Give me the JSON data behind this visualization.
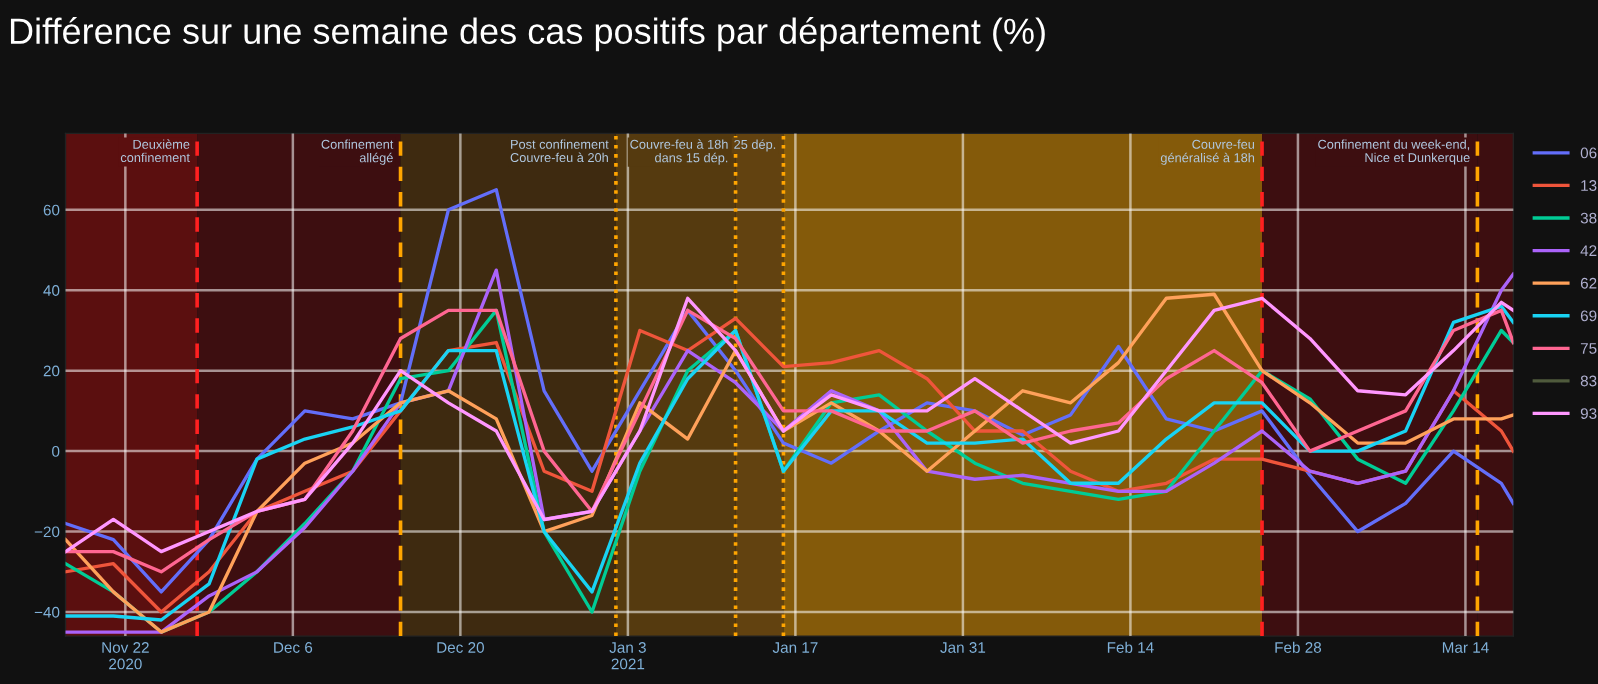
{
  "chart_data": {
    "type": "line",
    "title": "Différence sur une semaine des cas positifs par département (%)",
    "x": [
      "2020-11-17",
      "2020-11-21",
      "2020-11-25",
      "2020-11-29",
      "2020-12-03",
      "2020-12-07",
      "2020-12-11",
      "2020-12-15",
      "2020-12-19",
      "2020-12-23",
      "2020-12-27",
      "2020-12-31",
      "2021-01-04",
      "2021-01-08",
      "2021-01-12",
      "2021-01-16",
      "2021-01-20",
      "2021-01-24",
      "2021-01-28",
      "2021-02-01",
      "2021-02-05",
      "2021-02-09",
      "2021-02-13",
      "2021-02-17",
      "2021-02-21",
      "2021-02-25",
      "2021-03-01",
      "2021-03-05",
      "2021-03-09",
      "2021-03-13",
      "2021-03-17",
      "2021-03-18"
    ],
    "series": [
      {
        "name": "06",
        "color": "#636efa",
        "values": [
          -18,
          -22,
          -35,
          -22,
          -2,
          10,
          8,
          12,
          60,
          65,
          15,
          -5,
          15,
          35,
          20,
          2,
          -3,
          5,
          12,
          10,
          4,
          9,
          26,
          8,
          5,
          10,
          -6,
          -20,
          -13,
          0,
          -8,
          -13
        ]
      },
      {
        "name": "13",
        "color": "#ef553b",
        "values": [
          -30,
          -28,
          -40,
          -30,
          -15,
          -10,
          -5,
          10,
          25,
          27,
          -5,
          -10,
          30,
          25,
          33,
          21,
          22,
          25,
          18,
          5,
          5,
          -5,
          -10,
          -8,
          -2,
          -2,
          -5,
          -8,
          -5,
          15,
          5,
          0
        ]
      },
      {
        "name": "38",
        "color": "#00cc96",
        "values": [
          -28,
          -35,
          -45,
          -40,
          -30,
          -18,
          -5,
          18,
          20,
          35,
          -20,
          -40,
          -5,
          20,
          30,
          -5,
          12,
          14,
          5,
          -3,
          -8,
          -10,
          -12,
          -10,
          5,
          20,
          13,
          -2,
          -8,
          10,
          30,
          27
        ]
      },
      {
        "name": "42",
        "color": "#ab63fa",
        "values": [
          -45,
          -45,
          -45,
          -36,
          -30,
          -19,
          -5,
          12,
          15,
          45,
          -17,
          -15,
          5,
          25,
          17,
          5,
          15,
          10,
          -5,
          -7,
          -6,
          -8,
          -10,
          -10,
          -3,
          5,
          -5,
          -8,
          -5,
          15,
          40,
          44
        ]
      },
      {
        "name": "62",
        "color": "#ffa15a",
        "values": [
          -22,
          -35,
          -45,
          -40,
          -15,
          -3,
          2,
          12,
          15,
          8,
          -20,
          -16,
          12,
          3,
          25,
          5,
          12,
          5,
          -5,
          5,
          15,
          12,
          22,
          38,
          39,
          20,
          12,
          2,
          2,
          8,
          8,
          9
        ]
      },
      {
        "name": "69",
        "color": "#19d3f3",
        "values": [
          -41,
          -41,
          -42,
          -33,
          -2,
          3,
          6,
          10,
          25,
          25,
          -20,
          -35,
          -3,
          18,
          30,
          -5,
          10,
          10,
          2,
          2,
          3,
          -8,
          -8,
          3,
          12,
          12,
          0,
          0,
          5,
          32,
          36,
          32
        ]
      },
      {
        "name": "75",
        "color": "#ff6692",
        "values": [
          -25,
          -25,
          -30,
          -22,
          -15,
          -12,
          5,
          28,
          35,
          35,
          0,
          -15,
          10,
          35,
          28,
          10,
          10,
          5,
          5,
          10,
          2,
          5,
          7,
          18,
          25,
          17,
          0,
          5,
          10,
          30,
          35,
          27
        ]
      },
      {
        "name": "83",
        "color": "#4f5a3c",
        "values": [
          null,
          null,
          null,
          null,
          null,
          null,
          null,
          null,
          null,
          null,
          null,
          null,
          null,
          null,
          null,
          null,
          null,
          null,
          null,
          null,
          null,
          null,
          null,
          null,
          null,
          null,
          null,
          null,
          null,
          null,
          null,
          null
        ]
      },
      {
        "name": "93",
        "color": "#ff97ff",
        "values": [
          -25,
          -17,
          -25,
          -20,
          -15,
          -12,
          2,
          20,
          12,
          5,
          -17,
          -15,
          5,
          38,
          25,
          5,
          14,
          10,
          10,
          18,
          10,
          2,
          5,
          20,
          35,
          38,
          28,
          15,
          14,
          25,
          37,
          35
        ]
      }
    ],
    "xlim": [
      "2020-11-17",
      "2021-03-18"
    ],
    "xticks": [
      {
        "value": "2020-11-22",
        "label": "Nov 22\n2020"
      },
      {
        "value": "2020-12-06",
        "label": "Dec 6"
      },
      {
        "value": "2020-12-20",
        "label": "Dec 20"
      },
      {
        "value": "2021-01-03",
        "label": "Jan 3\n2021"
      },
      {
        "value": "2021-01-17",
        "label": "Jan 17"
      },
      {
        "value": "2021-01-31",
        "label": "Jan 31"
      },
      {
        "value": "2021-02-14",
        "label": "Feb 14"
      },
      {
        "value": "2021-02-28",
        "label": "Feb 28"
      },
      {
        "value": "2021-03-14",
        "label": "Mar 14"
      }
    ],
    "ylim": [
      -46,
      79
    ],
    "yticks": [
      {
        "value": -40,
        "label": "−40"
      },
      {
        "value": -20,
        "label": "−20"
      },
      0,
      20,
      40,
      60
    ],
    "bands": [
      {
        "axis": "x",
        "from": "2020-11-17",
        "to": "2020-11-28",
        "color": "#5b0f0f",
        "label": "Deuxième\nconfinement"
      },
      {
        "axis": "x",
        "from": "2020-11-28",
        "to": "2020-12-15",
        "color": "#3d0e10",
        "label": "Confinement\nallégé"
      },
      {
        "axis": "x",
        "from": "2020-12-15",
        "to": "2021-01-02",
        "color": "#3e2a10",
        "label": "Post confinement\nCouvre-feu à 20h"
      },
      {
        "axis": "x",
        "from": "2021-01-02",
        "to": "2021-01-12",
        "color": "#553a0f",
        "label": "Couvre-feu à 18h\ndans 15 dép."
      },
      {
        "axis": "x",
        "from": "2021-01-12",
        "to": "2021-01-16",
        "color": "#624210",
        "label": "25 dép."
      },
      {
        "axis": "x",
        "from": "2021-01-16",
        "to": "2021-02-25",
        "color": "#845a0a",
        "label": "Couvre-feu\ngénéralisé à 18h"
      },
      {
        "axis": "x",
        "from": "2021-02-25",
        "to": "2021-03-15",
        "color": "#3d0e10",
        "label": "Confinement du week-end,\nNice et Dunkerque"
      },
      {
        "axis": "x",
        "from": "2021-03-15",
        "to": "2021-03-18",
        "color": "#3d0e10"
      }
    ],
    "ref_lines": [
      {
        "axis": "x",
        "value": "2020-11-28",
        "color": "#ff2020",
        "line_style": "dashed"
      },
      {
        "axis": "x",
        "value": "2020-12-15",
        "color": "#ffa500",
        "line_style": "dashed"
      },
      {
        "axis": "x",
        "value": "2021-01-02",
        "color": "#ffa500",
        "line_style": "dotted"
      },
      {
        "axis": "x",
        "value": "2021-01-12",
        "color": "#ffa500",
        "line_style": "dotted"
      },
      {
        "axis": "x",
        "value": "2021-01-16",
        "color": "#ffa500",
        "line_style": "dotted"
      },
      {
        "axis": "x",
        "value": "2021-02-25",
        "color": "#ff2020",
        "line_style": "dashed"
      },
      {
        "axis": "x",
        "value": "2021-03-15",
        "color": "#ffa500",
        "line_style": "dashed"
      }
    ],
    "grid": true,
    "legend": "top right",
    "marker": "none",
    "line_style": "solid"
  }
}
